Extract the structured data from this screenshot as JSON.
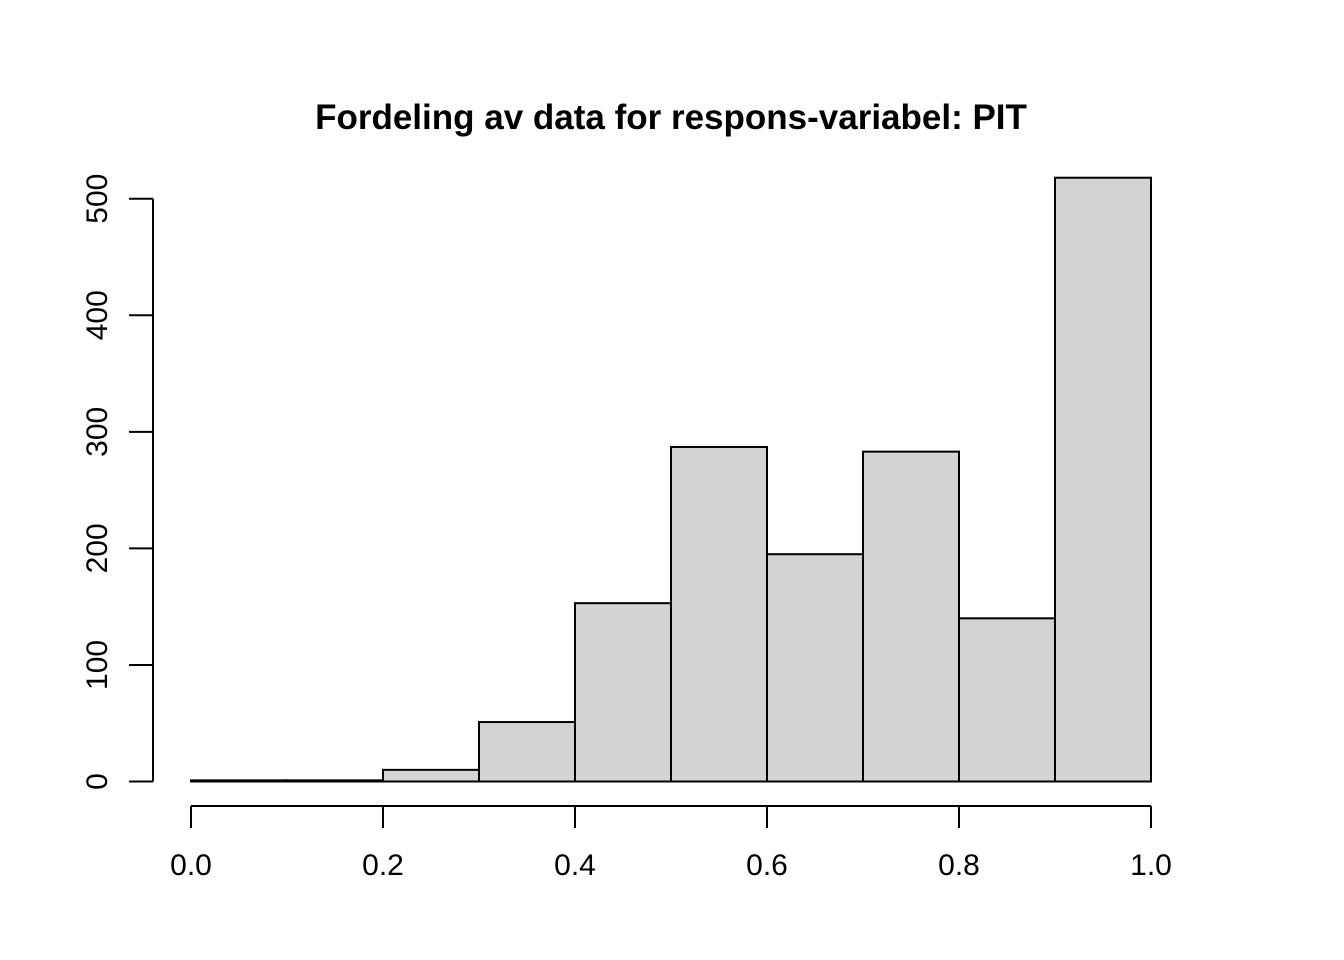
{
  "chart_data": {
    "type": "bar",
    "title": "Fordeling av data for respons-variabel: PIT",
    "xlabel": "",
    "ylabel": "",
    "bins": [
      {
        "x0": 0.0,
        "x1": 0.1,
        "count": 1
      },
      {
        "x0": 0.1,
        "x1": 0.2,
        "count": 1
      },
      {
        "x0": 0.2,
        "x1": 0.3,
        "count": 10
      },
      {
        "x0": 0.3,
        "x1": 0.4,
        "count": 51
      },
      {
        "x0": 0.4,
        "x1": 0.5,
        "count": 153
      },
      {
        "x0": 0.5,
        "x1": 0.6,
        "count": 287
      },
      {
        "x0": 0.6,
        "x1": 0.7,
        "count": 195
      },
      {
        "x0": 0.7,
        "x1": 0.8,
        "count": 283
      },
      {
        "x0": 0.8,
        "x1": 0.9,
        "count": 140
      },
      {
        "x0": 0.9,
        "x1": 1.0,
        "count": 518
      }
    ],
    "xlim": [
      0.0,
      1.0
    ],
    "ylim": [
      0,
      518
    ],
    "x_ticks": [
      0.0,
      0.2,
      0.4,
      0.6,
      0.8,
      1.0
    ],
    "x_tick_labels": [
      "0.0",
      "0.2",
      "0.4",
      "0.6",
      "0.8",
      "1.0"
    ],
    "y_ticks": [
      0,
      100,
      200,
      300,
      400,
      500
    ],
    "y_tick_labels": [
      "0",
      "100",
      "200",
      "300",
      "400",
      "500"
    ],
    "bar_color": "#d3d3d3",
    "edge_color": "#000000",
    "grid": false
  }
}
